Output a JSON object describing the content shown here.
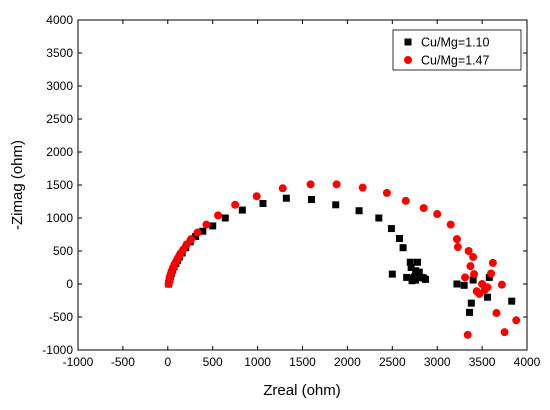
{
  "chart_data": {
    "type": "scatter",
    "title": "",
    "xlabel": "Zreal (ohm)",
    "ylabel": "-Zimag (ohm)",
    "xlim": [
      -1000,
      4000
    ],
    "ylim": [
      -1000,
      4000
    ],
    "xticks": [
      -1000,
      -500,
      0,
      500,
      1000,
      1500,
      2000,
      2500,
      3000,
      3500,
      4000
    ],
    "yticks": [
      -1000,
      -500,
      0,
      500,
      1000,
      1500,
      2000,
      2500,
      3000,
      3500,
      4000
    ],
    "grid": false,
    "legend_position": "top-right",
    "series": [
      {
        "name": "Cu/Mg=1.10",
        "marker": "square",
        "color": "#000000",
        "points": [
          [
            10,
            0
          ],
          [
            15,
            30
          ],
          [
            22,
            70
          ],
          [
            30,
            110
          ],
          [
            40,
            160
          ],
          [
            55,
            210
          ],
          [
            70,
            260
          ],
          [
            90,
            310
          ],
          [
            110,
            360
          ],
          [
            130,
            410
          ],
          [
            160,
            470
          ],
          [
            200,
            550
          ],
          [
            250,
            640
          ],
          [
            310,
            720
          ],
          [
            390,
            800
          ],
          [
            500,
            880
          ],
          [
            640,
            1000
          ],
          [
            830,
            1120
          ],
          [
            1060,
            1220
          ],
          [
            1320,
            1300
          ],
          [
            1600,
            1280
          ],
          [
            1870,
            1200
          ],
          [
            2130,
            1110
          ],
          [
            2350,
            1000
          ],
          [
            2490,
            840
          ],
          [
            2580,
            690
          ],
          [
            2620,
            550
          ],
          [
            2500,
            150
          ],
          [
            2660,
            100
          ],
          [
            2700,
            330
          ],
          [
            2710,
            250
          ],
          [
            2730,
            90
          ],
          [
            2750,
            110
          ],
          [
            2760,
            200
          ],
          [
            2780,
            330
          ],
          [
            2800,
            180
          ],
          [
            2830,
            100
          ],
          [
            2850,
            90
          ],
          [
            2870,
            70
          ],
          [
            2720,
            50
          ],
          [
            2760,
            60
          ],
          [
            3220,
            0
          ],
          [
            3300,
            -20
          ],
          [
            3360,
            -430
          ],
          [
            3380,
            -290
          ],
          [
            3400,
            60
          ],
          [
            3560,
            -200
          ],
          [
            3580,
            100
          ],
          [
            3830,
            -260
          ]
        ]
      },
      {
        "name": "Cu/Mg=1.47",
        "marker": "circle",
        "color": "#ff0000",
        "points": [
          [
            8,
            0
          ],
          [
            12,
            40
          ],
          [
            18,
            80
          ],
          [
            25,
            120
          ],
          [
            35,
            160
          ],
          [
            45,
            200
          ],
          [
            60,
            250
          ],
          [
            75,
            300
          ],
          [
            95,
            350
          ],
          [
            115,
            400
          ],
          [
            140,
            460
          ],
          [
            170,
            520
          ],
          [
            210,
            600
          ],
          [
            260,
            680
          ],
          [
            330,
            780
          ],
          [
            430,
            900
          ],
          [
            560,
            1040
          ],
          [
            750,
            1200
          ],
          [
            990,
            1330
          ],
          [
            1280,
            1450
          ],
          [
            1590,
            1510
          ],
          [
            1880,
            1510
          ],
          [
            2170,
            1460
          ],
          [
            2440,
            1380
          ],
          [
            2650,
            1260
          ],
          [
            2850,
            1150
          ],
          [
            3000,
            1060
          ],
          [
            3150,
            900
          ],
          [
            3220,
            680
          ],
          [
            3230,
            560
          ],
          [
            3310,
            100
          ],
          [
            3350,
            500
          ],
          [
            3370,
            270
          ],
          [
            3400,
            410
          ],
          [
            3410,
            150
          ],
          [
            3440,
            -110
          ],
          [
            3470,
            -150
          ],
          [
            3500,
            0
          ],
          [
            3530,
            -90
          ],
          [
            3560,
            -50
          ],
          [
            3600,
            160
          ],
          [
            3620,
            320
          ],
          [
            3660,
            -440
          ],
          [
            3720,
            -10
          ],
          [
            3750,
            -730
          ],
          [
            3340,
            -770
          ],
          [
            3880,
            -550
          ]
        ]
      }
    ]
  }
}
